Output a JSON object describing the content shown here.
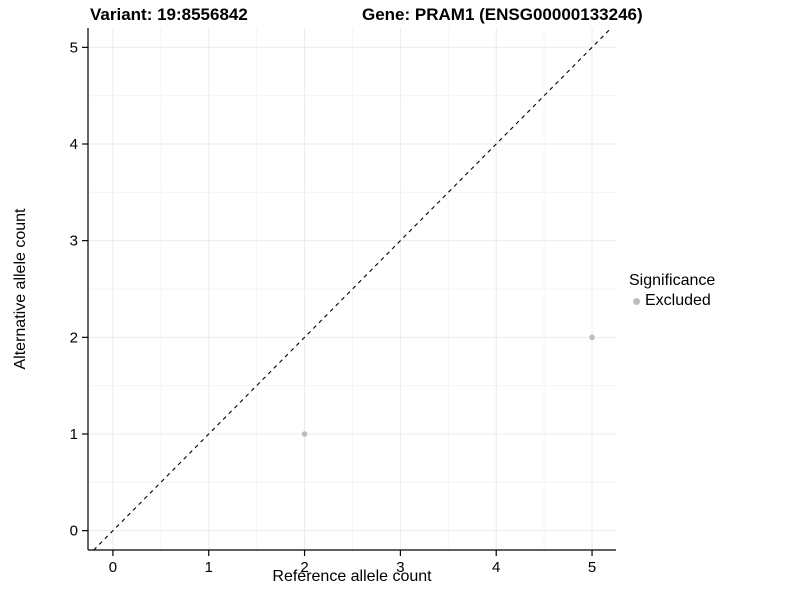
{
  "chart_data": {
    "type": "scatter",
    "title_variant": "Variant: 19:8556842",
    "title_gene": "Gene: PRAM1 (ENSG00000133246)",
    "xlabel": "Reference allele count",
    "ylabel": "Alternative allele count",
    "xticks": [
      0,
      1,
      2,
      3,
      4,
      5
    ],
    "yticks": [
      0,
      1,
      2,
      3,
      4,
      5
    ],
    "xlim": [
      -0.26,
      5.25
    ],
    "ylim": [
      -0.2,
      5.2
    ],
    "grid": true,
    "diagonal_line": {
      "style": "dashed",
      "equation": "y = x",
      "color": "#000000"
    },
    "points": [
      {
        "x": 2,
        "y": 1,
        "significance": "Excluded"
      },
      {
        "x": 5,
        "y": 2,
        "significance": "Excluded"
      }
    ],
    "point_color": "#bdbdbd",
    "point_radius": 2.8,
    "legend": {
      "title": "Significance",
      "position": "right",
      "items": [
        {
          "label": "Excluded",
          "color": "#bdbdbd"
        }
      ]
    },
    "colors": {
      "grid_major": "#ebebeb",
      "grid_minor": "#f5f5f5",
      "axis": "#000000",
      "tick_label": "#000000"
    }
  }
}
